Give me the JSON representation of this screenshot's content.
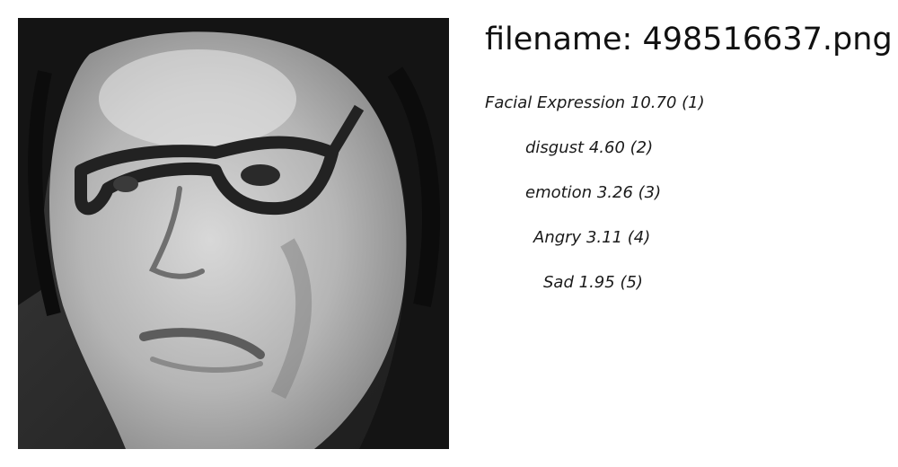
{
  "header": {
    "filename_label": "filename:",
    "filename_value": "498516637.png"
  },
  "image": {
    "alt": "grayscale face photo with glasses"
  },
  "labels": [
    {
      "name": "Facial Expression",
      "score": "10.70",
      "rank": "(1)"
    },
    {
      "name": "disgust",
      "score": "4.60",
      "rank": "(2)"
    },
    {
      "name": "emotion",
      "score": "3.26",
      "rank": "(3)"
    },
    {
      "name": "Angry",
      "score": "3.11",
      "rank": "(4)"
    },
    {
      "name": "Sad",
      "score": "1.95",
      "rank": "(5)"
    }
  ]
}
